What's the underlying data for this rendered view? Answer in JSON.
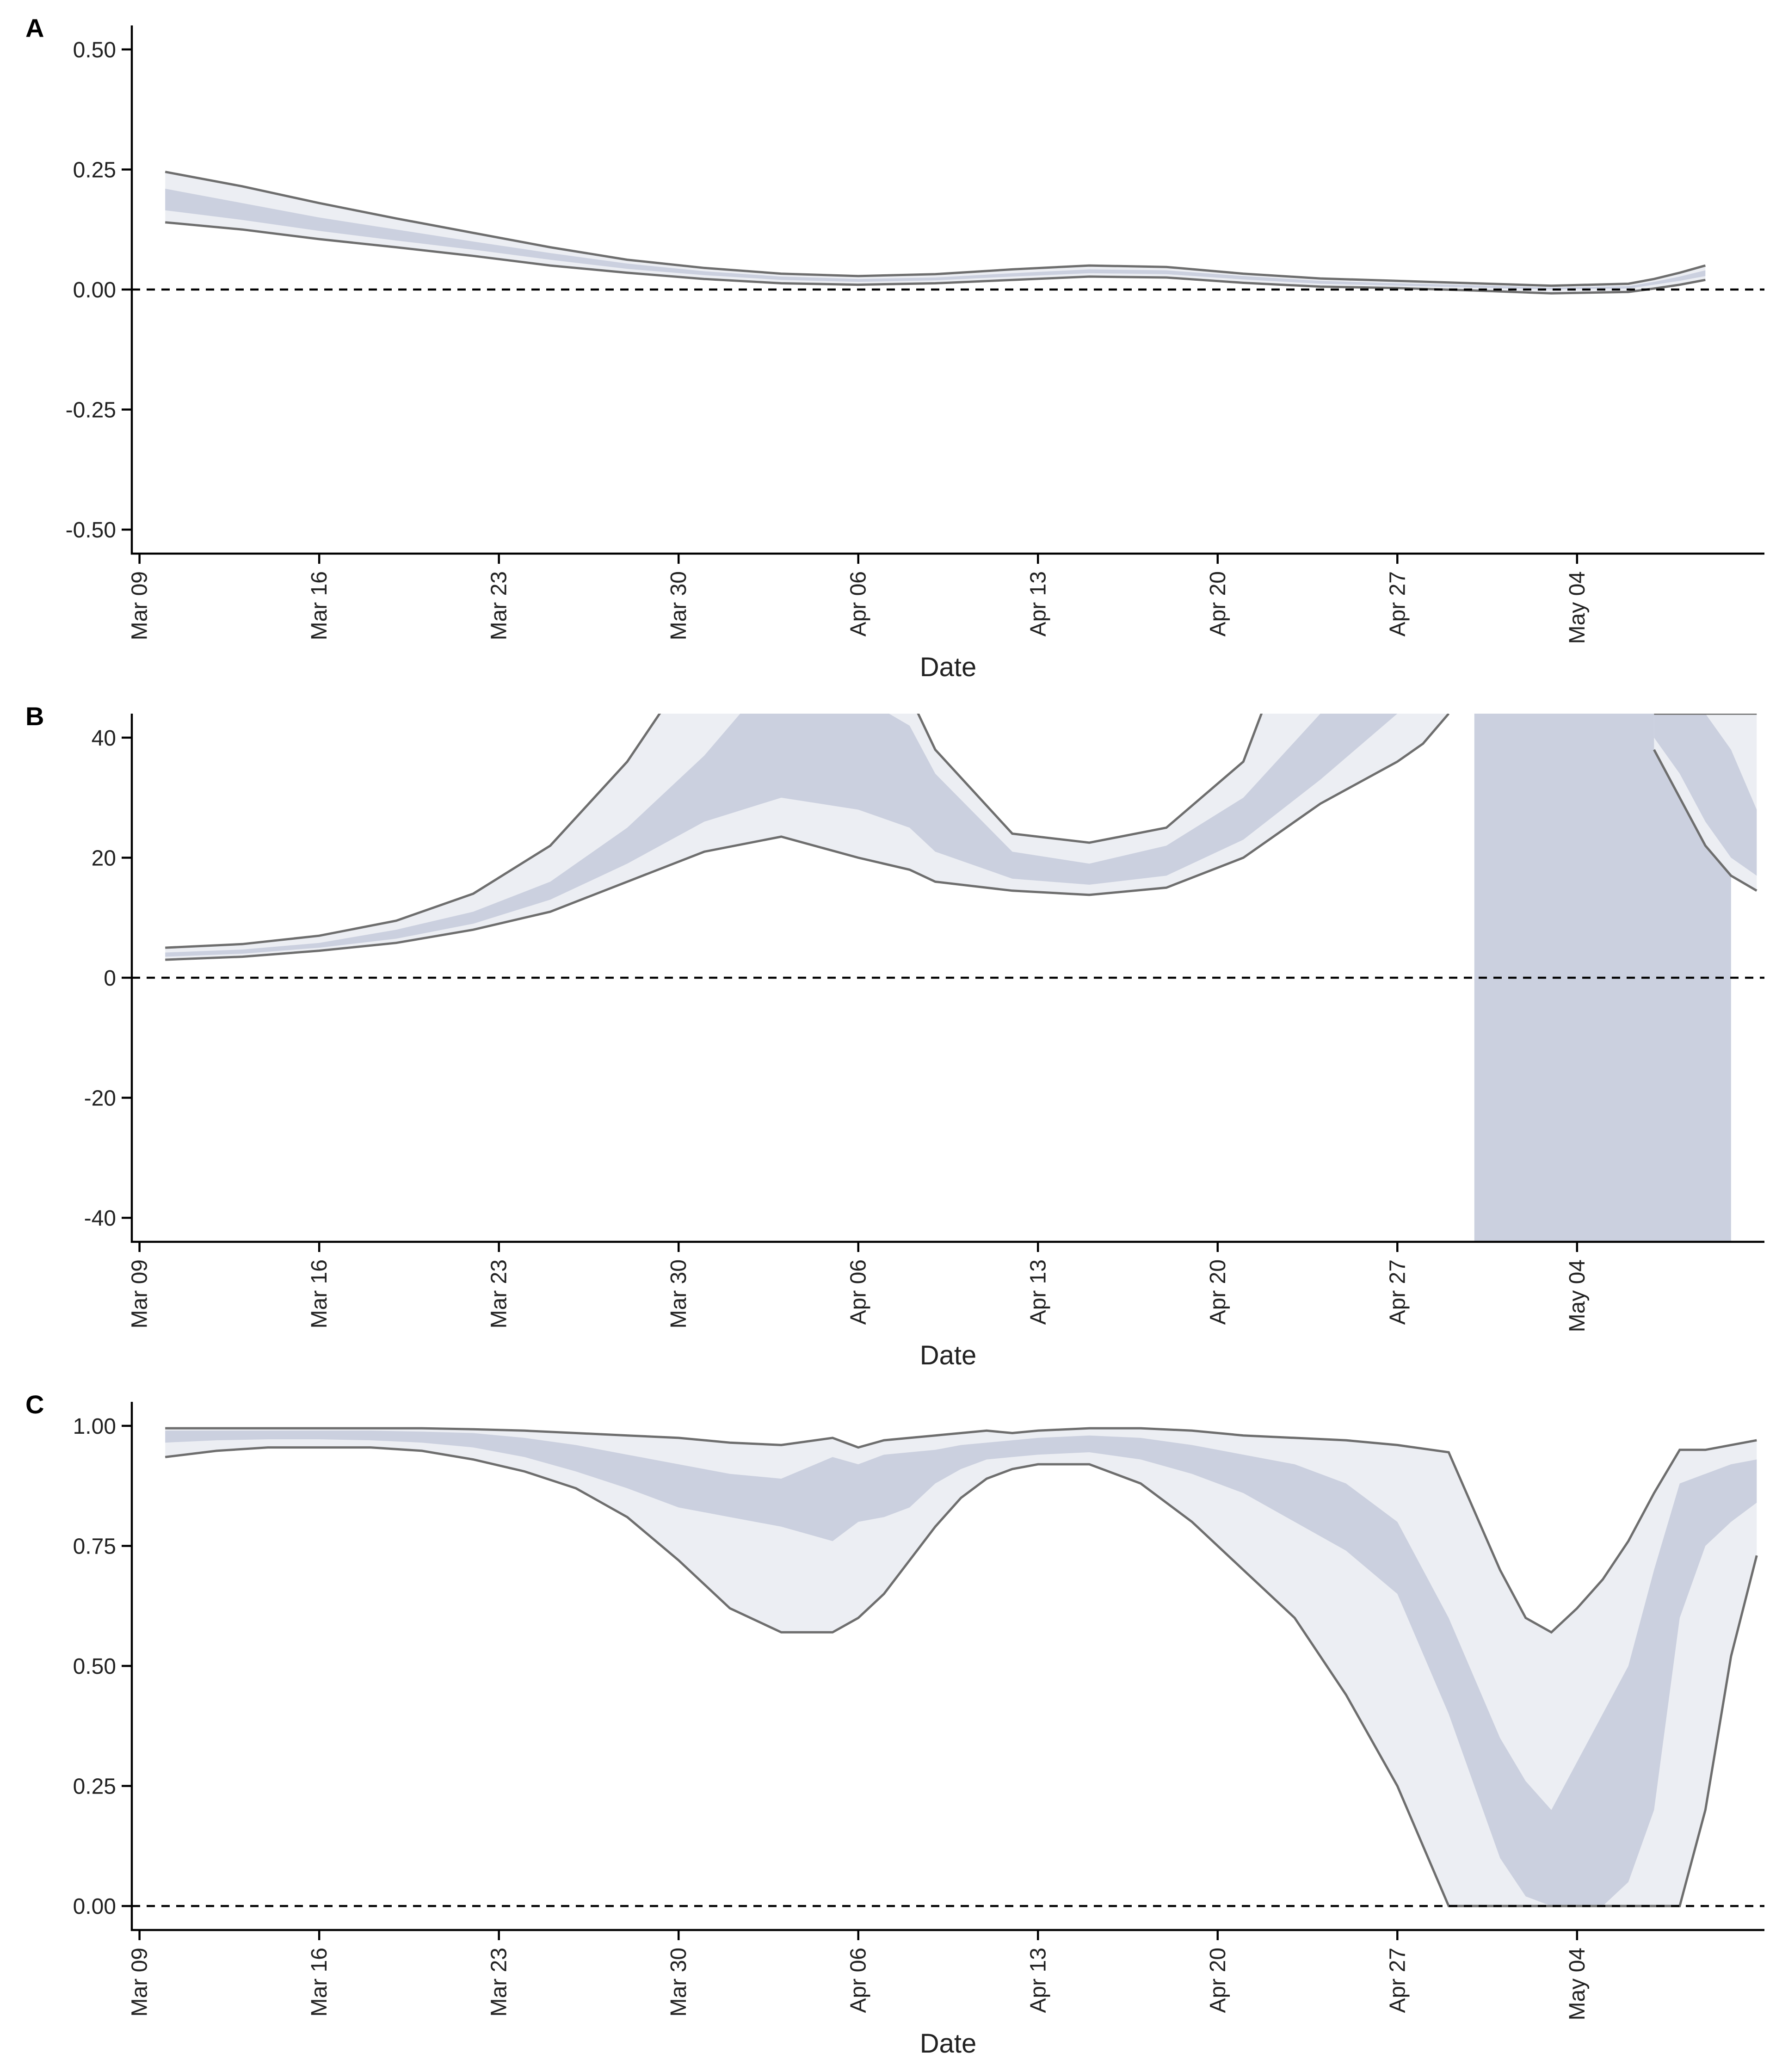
{
  "chart_data": [
    {
      "panel": "A",
      "type": "area",
      "xlabel": "Date",
      "x_ticks": [
        "Mar 09",
        "Mar 16",
        "Mar 23",
        "Mar 30",
        "Apr 06",
        "Apr 13",
        "Apr 20",
        "Apr 27",
        "May 04"
      ],
      "y_ticks": [
        "-0.50",
        "-0.25",
        "0.00",
        "0.25",
        "0.50"
      ],
      "ylim": [
        -0.55,
        0.55
      ],
      "xlim": [
        -0.3,
        63.3
      ],
      "reference_line_y": 0,
      "x": [
        1,
        4,
        7,
        10,
        13,
        16,
        19,
        22,
        25,
        28,
        31,
        34,
        37,
        40,
        43,
        46,
        49,
        52,
        55,
        58,
        59,
        60,
        61
      ],
      "outer_upper": [
        0.245,
        0.215,
        0.18,
        0.148,
        0.118,
        0.088,
        0.062,
        0.045,
        0.033,
        0.028,
        0.032,
        0.042,
        0.05,
        0.047,
        0.033,
        0.023,
        0.018,
        0.013,
        0.008,
        0.012,
        0.022,
        0.035,
        0.05
      ],
      "inner_upper": [
        0.21,
        0.18,
        0.15,
        0.125,
        0.1,
        0.076,
        0.054,
        0.038,
        0.027,
        0.022,
        0.025,
        0.034,
        0.042,
        0.04,
        0.028,
        0.018,
        0.013,
        0.009,
        0.004,
        0.007,
        0.016,
        0.027,
        0.04
      ],
      "inner_lower": [
        0.165,
        0.145,
        0.122,
        0.102,
        0.083,
        0.062,
        0.043,
        0.03,
        0.02,
        0.016,
        0.019,
        0.027,
        0.034,
        0.032,
        0.021,
        0.012,
        0.008,
        0.004,
        0.0,
        0.002,
        0.01,
        0.018,
        0.028
      ],
      "outer_lower": [
        0.14,
        0.125,
        0.105,
        0.088,
        0.07,
        0.05,
        0.035,
        0.022,
        0.013,
        0.01,
        0.013,
        0.02,
        0.027,
        0.025,
        0.014,
        0.006,
        0.003,
        -0.002,
        -0.008,
        -0.005,
        0.002,
        0.01,
        0.02
      ]
    },
    {
      "panel": "B",
      "type": "area",
      "xlabel": "Date",
      "x_ticks": [
        "Mar 09",
        "Mar 16",
        "Mar 23",
        "Mar 30",
        "Apr 06",
        "Apr 13",
        "Apr 20",
        "Apr 27",
        "May 04"
      ],
      "y_ticks": [
        "-40",
        "-20",
        "0",
        "20",
        "40"
      ],
      "ylim": [
        -44,
        44
      ],
      "xlim": [
        -0.3,
        63.3
      ],
      "reference_line_y": 0,
      "segment_1": {
        "x": [
          1,
          4,
          7,
          10,
          13,
          16,
          19,
          22,
          25,
          28,
          30,
          31,
          34,
          37,
          40,
          43,
          46,
          49,
          50,
          51
        ],
        "outer_upper": [
          5,
          5.6,
          7,
          9.5,
          14,
          22,
          36,
          55,
          70,
          52,
          47,
          38,
          24,
          22.5,
          25,
          36,
          70,
          60,
          60,
          60
        ],
        "inner_upper": [
          4.2,
          4.7,
          5.8,
          8,
          11,
          16,
          25,
          37,
          52,
          47,
          42,
          34,
          21,
          19,
          22,
          30,
          44,
          50,
          50,
          50
        ],
        "inner_lower": [
          3.5,
          4,
          5,
          6.5,
          9,
          13,
          19,
          26,
          30,
          28,
          25,
          21,
          16.5,
          15.5,
          17,
          23,
          33,
          44,
          44,
          44
        ],
        "outer_lower": [
          3,
          3.5,
          4.5,
          5.8,
          8,
          11,
          16,
          21,
          23.5,
          20,
          18,
          16,
          14.5,
          13.8,
          15,
          20,
          29,
          36,
          39,
          44
        ]
      },
      "segment_2": {
        "x": [
          52,
          53,
          54,
          55,
          56,
          57,
          58,
          59,
          60,
          61,
          62
        ],
        "outer_upper": [
          60,
          60,
          60,
          60,
          60,
          60,
          45,
          45,
          45,
          45,
          45
        ],
        "inner_upper": [
          60,
          60,
          60,
          60,
          60,
          60,
          45,
          45,
          45,
          45,
          45
        ],
        "inner_lower": [
          -60,
          -60,
          -60,
          -60,
          -60,
          -60,
          -60,
          -60,
          -60,
          -60,
          -60
        ],
        "outer_lower": [
          -60,
          -60,
          -60,
          -60,
          -60,
          -60,
          -60,
          -60,
          -60,
          -60,
          -60
        ]
      },
      "segment_3": {
        "x": [
          59,
          60,
          61,
          62,
          63
        ],
        "outer_upper": [
          44,
          44,
          44,
          44,
          44
        ],
        "inner_upper": [
          44,
          44,
          44,
          38,
          28
        ],
        "inner_lower": [
          40,
          34,
          26,
          20,
          17
        ],
        "outer_lower": [
          38,
          30,
          22,
          17,
          14.5
        ]
      }
    },
    {
      "panel": "C",
      "type": "area",
      "xlabel": "Date",
      "x_ticks": [
        "Mar 09",
        "Mar 16",
        "Mar 23",
        "Mar 30",
        "Apr 06",
        "Apr 13",
        "Apr 20",
        "Apr 27",
        "May 04"
      ],
      "y_ticks": [
        "0.00",
        "0.25",
        "0.50",
        "0.75",
        "1.00"
      ],
      "ylim": [
        -0.05,
        1.05
      ],
      "xlim": [
        -0.3,
        63.3
      ],
      "reference_line_y": 0,
      "x": [
        1,
        3,
        5,
        7,
        9,
        11,
        13,
        15,
        17,
        19,
        21,
        23,
        25,
        27,
        28,
        29,
        30,
        31,
        32,
        33,
        34,
        35,
        37,
        39,
        41,
        43,
        45,
        47,
        49,
        51,
        53,
        54,
        55,
        56,
        57,
        58,
        59,
        60,
        61,
        62,
        63
      ],
      "outer_upper": [
        0.995,
        0.995,
        0.995,
        0.995,
        0.995,
        0.995,
        0.993,
        0.99,
        0.985,
        0.98,
        0.975,
        0.965,
        0.96,
        0.975,
        0.955,
        0.97,
        0.975,
        0.98,
        0.985,
        0.99,
        0.985,
        0.99,
        0.995,
        0.995,
        0.99,
        0.98,
        0.975,
        0.97,
        0.96,
        0.945,
        0.7,
        0.6,
        0.57,
        0.62,
        0.68,
        0.76,
        0.86,
        0.95,
        0.95,
        0.96,
        0.97
      ],
      "inner_upper": [
        0.99,
        0.99,
        0.99,
        0.99,
        0.99,
        0.988,
        0.985,
        0.975,
        0.96,
        0.94,
        0.92,
        0.9,
        0.89,
        0.935,
        0.92,
        0.94,
        0.945,
        0.95,
        0.96,
        0.965,
        0.97,
        0.975,
        0.98,
        0.975,
        0.96,
        0.94,
        0.92,
        0.88,
        0.8,
        0.6,
        0.35,
        0.26,
        0.2,
        0.3,
        0.4,
        0.5,
        0.7,
        0.88,
        0.9,
        0.92,
        0.93
      ],
      "inner_lower": [
        0.965,
        0.97,
        0.972,
        0.972,
        0.97,
        0.965,
        0.955,
        0.935,
        0.905,
        0.87,
        0.83,
        0.81,
        0.79,
        0.76,
        0.8,
        0.81,
        0.83,
        0.88,
        0.91,
        0.93,
        0.935,
        0.94,
        0.945,
        0.93,
        0.9,
        0.86,
        0.8,
        0.74,
        0.65,
        0.4,
        0.1,
        0.02,
        0.0,
        0.0,
        0.0,
        0.05,
        0.2,
        0.6,
        0.75,
        0.8,
        0.84
      ],
      "outer_lower": [
        0.935,
        0.948,
        0.955,
        0.955,
        0.955,
        0.948,
        0.93,
        0.905,
        0.87,
        0.81,
        0.72,
        0.62,
        0.57,
        0.57,
        0.6,
        0.65,
        0.72,
        0.79,
        0.85,
        0.89,
        0.91,
        0.92,
        0.92,
        0.88,
        0.8,
        0.7,
        0.6,
        0.44,
        0.25,
        0.0,
        0.0,
        0.0,
        0.0,
        0.0,
        0.0,
        0.0,
        0.0,
        0.0,
        0.2,
        0.52,
        0.73
      ]
    }
  ]
}
